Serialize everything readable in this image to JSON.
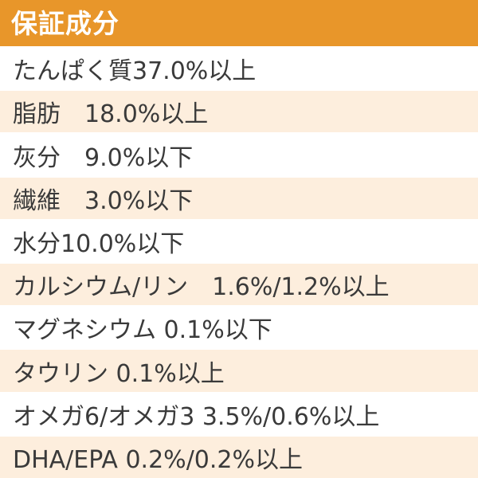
{
  "header": {
    "title": "保証成分"
  },
  "colors": {
    "header_bg": "#e8962a",
    "row_alt_bg": "#fdeedd",
    "text": "#3a3a3a"
  },
  "rows": [
    "たんぱく質37.0%以上",
    "脂肪　18.0%以上",
    "灰分　9.0%以下",
    "繊維　3.0%以下",
    "水分10.0%以下",
    "カルシウム/リン　1.6%/1.2%以上",
    "マグネシウム 0.1%以下",
    "タウリン 0.1%以上",
    "オメガ6/オメガ3 3.5%/0.6%以上",
    "DHA/EPA 0.2%/0.2%以上"
  ]
}
